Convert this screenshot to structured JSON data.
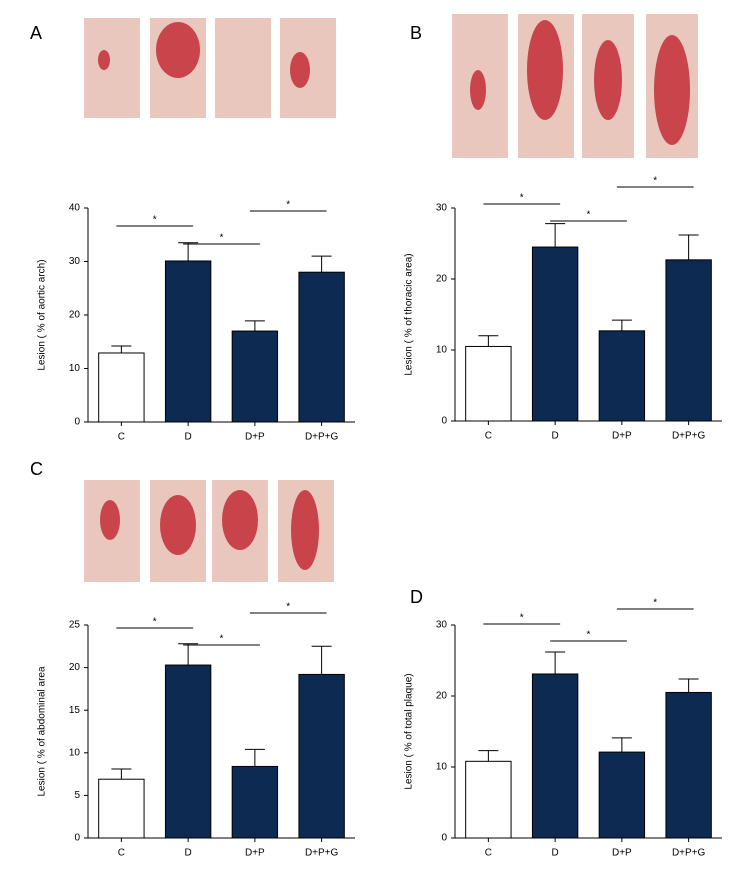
{
  "chart_data": [
    {
      "type": "bar",
      "panel": "A",
      "y_label": "Lesion ( % of aortic arch)",
      "categories": [
        "C",
        "D",
        "D+P",
        "D+P+G"
      ],
      "values": [
        12.9,
        30.1,
        17.0,
        28.0
      ],
      "errors": [
        1.3,
        3.4,
        1.9,
        3.0
      ],
      "colors": [
        "#ffffff",
        "#0d2a52",
        "#0d2a52",
        "#0d2a52"
      ],
      "ylim": [
        0,
        40
      ],
      "yticks": [
        0,
        10,
        20,
        30,
        40
      ],
      "significance_labels": [
        "*",
        "*",
        "*"
      ]
    },
    {
      "type": "bar",
      "panel": "B",
      "y_label": "Lesion ( % of thoracic area)",
      "categories": [
        "C",
        "D",
        "D+P",
        "D+P+G"
      ],
      "values": [
        10.5,
        24.5,
        12.7,
        22.7
      ],
      "errors": [
        1.5,
        3.3,
        1.5,
        3.5
      ],
      "colors": [
        "#ffffff",
        "#0d2a52",
        "#0d2a52",
        "#0d2a52"
      ],
      "ylim": [
        0,
        30
      ],
      "yticks": [
        0,
        10,
        20,
        30
      ],
      "significance_labels": [
        "*",
        "*",
        "*"
      ]
    },
    {
      "type": "bar",
      "panel": "C",
      "y_label": "Lesion ( % of abdominal area",
      "categories": [
        "C",
        "D",
        "D+P",
        "D+P+G"
      ],
      "values": [
        6.9,
        20.3,
        8.4,
        19.2
      ],
      "errors": [
        1.2,
        2.5,
        2.0,
        3.3
      ],
      "colors": [
        "#ffffff",
        "#0d2a52",
        "#0d2a52",
        "#0d2a52"
      ],
      "ylim": [
        0,
        25
      ],
      "yticks": [
        0,
        5,
        10,
        15,
        20,
        25
      ],
      "significance_labels": [
        "*",
        "*",
        "*"
      ]
    },
    {
      "type": "bar",
      "panel": "D",
      "y_label": "Lesion ( % of total plaque)",
      "categories": [
        "C",
        "D",
        "D+P",
        "D+P+G"
      ],
      "values": [
        10.8,
        23.1,
        12.1,
        20.5
      ],
      "errors": [
        1.5,
        3.1,
        2.0,
        1.9
      ],
      "colors": [
        "#ffffff",
        "#0d2a52",
        "#0d2a52",
        "#0d2a52"
      ],
      "ylim": [
        0,
        30
      ],
      "yticks": [
        0,
        10,
        20,
        30
      ],
      "significance_labels": [
        "*",
        "*",
        "*"
      ]
    }
  ]
}
